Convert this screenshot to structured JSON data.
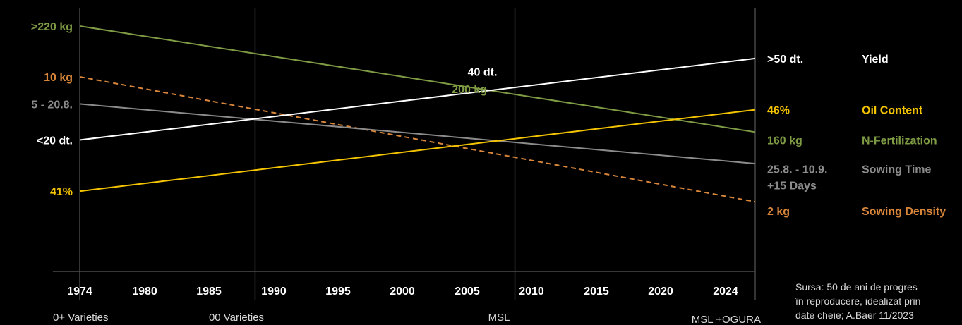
{
  "chart_data": {
    "type": "line",
    "x_ticks": [
      "1974",
      "1980",
      "1985",
      "1990",
      "1995",
      "2000",
      "2005",
      "2010",
      "2015",
      "2020",
      "2024"
    ],
    "xlim": [
      1974,
      2026
    ],
    "era_markers": [
      {
        "label": "0+ Varieties",
        "year": 1974
      },
      {
        "label": "00 Varieties",
        "year": 1987.5
      },
      {
        "label": "MSL",
        "year": 2007.5
      },
      {
        "label": "MSL +OGURA",
        "year": 2026
      }
    ],
    "series": [
      {
        "name": "N-Fertilization",
        "color": "#7f9c45",
        "dashed": false,
        "points": [
          [
            1974,
            0.933
          ],
          [
            2026,
            0.53
          ]
        ],
        "start_label": ">220  kg",
        "mid_label": "200 kg",
        "mid_at": [
          2004,
          0.695
        ],
        "end_label": "160 kg",
        "row_label": 0.5
      },
      {
        "name": "Sowing Density",
        "color": "#d9863a",
        "dashed": true,
        "points": [
          [
            1974,
            0.74
          ],
          [
            2026,
            0.265
          ]
        ],
        "start_label": "10 kg",
        "end_label": "2 kg",
        "row_label": 0.23
      },
      {
        "name": "Sowing Time",
        "color": "#8c8c8c",
        "dashed": false,
        "points": [
          [
            1974,
            0.637
          ],
          [
            2026,
            0.41
          ]
        ],
        "start_label": "5 - 20.8.",
        "end_label": "25.8. - 10.9.",
        "end_label_2": "+15 Days",
        "row_label": 0.39
      },
      {
        "name": "Yield",
        "color": "#ffffff",
        "dashed": false,
        "points": [
          [
            1974,
            0.5
          ],
          [
            2026,
            0.81
          ]
        ],
        "start_label": "<20 dt.",
        "mid_label": "40 dt.",
        "mid_at": [
          2005,
          0.76
        ],
        "end_label": ">50 dt.",
        "row_label": 0.81
      },
      {
        "name": "Oil Content",
        "color": "#f5c400",
        "dashed": false,
        "points": [
          [
            1974,
            0.305
          ],
          [
            2026,
            0.615
          ]
        ],
        "start_label": "41%",
        "end_label": "46%",
        "row_label": 0.615
      }
    ],
    "source_lines": [
      "Sursa: 50 de ani de progres",
      "în reproducere, idealizat prin",
      "date cheie; A.Baer 11/2023"
    ]
  }
}
